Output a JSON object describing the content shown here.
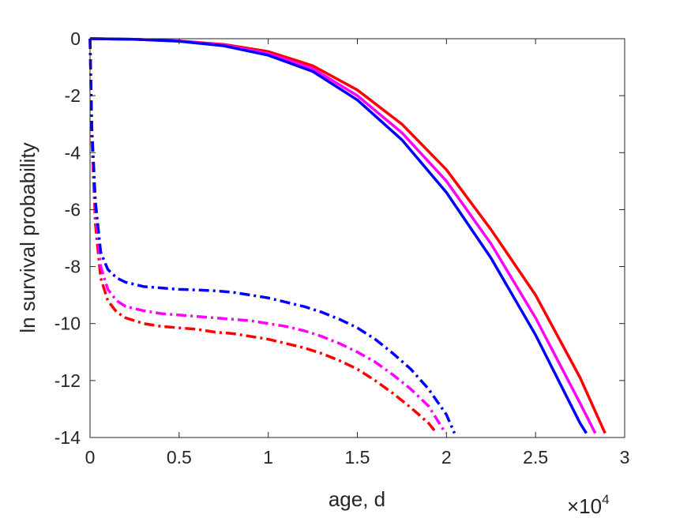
{
  "chart_data": {
    "type": "line",
    "title": "",
    "xlabel": "age, d",
    "ylabel": "ln survival probability",
    "x_multiplier_label": "×10",
    "x_multiplier_exponent": "4",
    "xlim": [
      0,
      30000
    ],
    "ylim": [
      -14,
      0
    ],
    "grid": false,
    "legend": "none",
    "x_ticks": [
      0,
      5000,
      10000,
      15000,
      20000,
      25000,
      30000
    ],
    "x_tick_labels": [
      "0",
      "0.5",
      "1",
      "1.5",
      "2",
      "2.5",
      "3"
    ],
    "y_ticks": [
      0,
      -2,
      -4,
      -6,
      -8,
      -10,
      -12,
      -14
    ],
    "y_tick_labels": [
      "0",
      "-2",
      "-4",
      "-6",
      "-8",
      "-10",
      "-12",
      "-14"
    ],
    "series": [
      {
        "color": "#ff0000",
        "style": "solid",
        "x": [
          0,
          2500,
          5000,
          7500,
          10000,
          12500,
          15000,
          17500,
          20000,
          22500,
          25000,
          27500,
          28900
        ],
        "y": [
          0,
          -0.02,
          -0.08,
          -0.2,
          -0.45,
          -0.95,
          -1.8,
          -3.0,
          -4.6,
          -6.7,
          -9.0,
          -11.9,
          -13.85
        ]
      },
      {
        "color": "#ff00ff",
        "style": "solid",
        "x": [
          0,
          2500,
          5000,
          7500,
          10000,
          12500,
          15000,
          17500,
          20000,
          22500,
          25000,
          27500,
          28350
        ],
        "y": [
          0,
          -0.02,
          -0.08,
          -0.22,
          -0.52,
          -1.05,
          -2.0,
          -3.3,
          -5.0,
          -7.2,
          -9.8,
          -12.8,
          -13.85
        ]
      },
      {
        "color": "#0000ff",
        "style": "solid",
        "x": [
          0,
          2500,
          5000,
          7500,
          10000,
          12500,
          15000,
          17500,
          20000,
          22500,
          25000,
          27500,
          27850
        ],
        "y": [
          0,
          -0.02,
          -0.09,
          -0.25,
          -0.58,
          -1.15,
          -2.15,
          -3.55,
          -5.4,
          -7.7,
          -10.4,
          -13.5,
          -13.85
        ]
      },
      {
        "color": "#ff0000",
        "style": "dashdot",
        "x": [
          0,
          100,
          300,
          600,
          1000,
          1500,
          2000,
          3000,
          4000,
          5000,
          6000,
          7000,
          8000,
          9000,
          10000,
          11000,
          12000,
          13000,
          14000,
          15000,
          16000,
          17000,
          18000,
          19000,
          19450
        ],
        "y": [
          0,
          -3.5,
          -6.5,
          -8.4,
          -9.2,
          -9.6,
          -9.8,
          -10.0,
          -10.1,
          -10.15,
          -10.2,
          -10.3,
          -10.35,
          -10.45,
          -10.55,
          -10.7,
          -10.85,
          -11.05,
          -11.3,
          -11.6,
          -12.0,
          -12.45,
          -12.95,
          -13.5,
          -13.85
        ]
      },
      {
        "color": "#ff00ff",
        "style": "dashdot",
        "x": [
          0,
          100,
          300,
          600,
          1000,
          1500,
          2000,
          3000,
          4000,
          5000,
          6000,
          7000,
          8000,
          9000,
          10000,
          11000,
          12000,
          13000,
          14000,
          15000,
          16000,
          17000,
          18000,
          19000,
          19950
        ],
        "y": [
          0,
          -3.3,
          -6.1,
          -8.0,
          -8.8,
          -9.2,
          -9.4,
          -9.55,
          -9.65,
          -9.7,
          -9.75,
          -9.8,
          -9.85,
          -9.9,
          -10.0,
          -10.1,
          -10.25,
          -10.45,
          -10.7,
          -11.0,
          -11.35,
          -11.8,
          -12.3,
          -12.9,
          -13.85
        ]
      },
      {
        "color": "#0000ff",
        "style": "dashdot",
        "x": [
          0,
          100,
          300,
          600,
          1000,
          1500,
          2000,
          3000,
          4000,
          5000,
          6000,
          7000,
          8000,
          9000,
          10000,
          11000,
          12000,
          13000,
          14000,
          15000,
          16000,
          17000,
          18000,
          19000,
          20000,
          20450
        ],
        "y": [
          0,
          -3.1,
          -5.7,
          -7.5,
          -8.1,
          -8.4,
          -8.55,
          -8.7,
          -8.75,
          -8.8,
          -8.82,
          -8.85,
          -8.9,
          -9.0,
          -9.1,
          -9.25,
          -9.4,
          -9.6,
          -9.85,
          -10.15,
          -10.55,
          -11.05,
          -11.6,
          -12.3,
          -13.2,
          -13.85
        ]
      }
    ]
  }
}
